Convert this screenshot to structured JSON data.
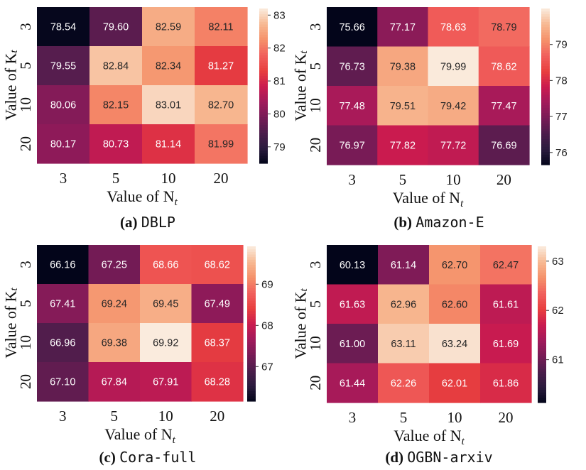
{
  "colorscale": [
    "#03051a",
    "#2b1b3e",
    "#4c1d4b",
    "#771b56",
    "#a11a5b",
    "#cb1b4f",
    "#e83f3f",
    "#f1605d",
    "#f5916a",
    "#f7b891",
    "#faebdd"
  ],
  "chart_data": [
    {
      "type": "heatmap",
      "caption_label": "(a)",
      "caption_name": "DBLP",
      "xlabel": "Value of N",
      "xlabel_sub": "t",
      "ylabel": "Value of K",
      "ylabel_sub": "t",
      "x_categories": [
        "3",
        "5",
        "10",
        "20"
      ],
      "y_categories": [
        "3",
        "5",
        "10",
        "20"
      ],
      "values": [
        [
          "78.54",
          "79.60",
          "82.59",
          "82.11"
        ],
        [
          "79.55",
          "82.84",
          "82.34",
          "81.27"
        ],
        [
          "80.06",
          "82.15",
          "83.01",
          "82.70"
        ],
        [
          "80.17",
          "80.73",
          "81.14",
          "81.99"
        ]
      ],
      "colorbar_range": [
        78.5,
        83.2
      ],
      "colorbar_ticks": [
        "79",
        "80",
        "81",
        "82",
        "83"
      ]
    },
    {
      "type": "heatmap",
      "caption_label": "(b)",
      "caption_name": "Amazon-E",
      "xlabel": "Value of N",
      "xlabel_sub": "t",
      "ylabel": "Value of K",
      "ylabel_sub": "t",
      "x_categories": [
        "3",
        "5",
        "10",
        "20"
      ],
      "y_categories": [
        "3",
        "5",
        "10",
        "20"
      ],
      "values": [
        [
          "75.66",
          "77.17",
          "78.63",
          "78.79"
        ],
        [
          "76.73",
          "79.38",
          "79.99",
          "78.62"
        ],
        [
          "77.48",
          "79.51",
          "79.42",
          "77.47"
        ],
        [
          "76.97",
          "77.82",
          "77.72",
          "76.69"
        ]
      ],
      "colorbar_range": [
        75.66,
        80.0
      ],
      "colorbar_ticks": [
        "76",
        "77",
        "78",
        "79"
      ]
    },
    {
      "type": "heatmap",
      "caption_label": "(c)",
      "caption_name": "Cora-full",
      "xlabel": "Value of N",
      "xlabel_sub": "t",
      "ylabel": "Value of K",
      "ylabel_sub": "t",
      "x_categories": [
        "3",
        "5",
        "10",
        "20"
      ],
      "y_categories": [
        "3",
        "5",
        "10",
        "20"
      ],
      "values": [
        [
          "66.16",
          "67.25",
          "68.66",
          "68.62"
        ],
        [
          "67.41",
          "69.24",
          "69.45",
          "67.49"
        ],
        [
          "66.96",
          "69.38",
          "69.92",
          "68.37"
        ],
        [
          "67.10",
          "67.84",
          "67.91",
          "68.28"
        ]
      ],
      "colorbar_range": [
        66.16,
        69.92
      ],
      "colorbar_ticks": [
        "67",
        "68",
        "69"
      ]
    },
    {
      "type": "heatmap",
      "caption_label": "(d)",
      "caption_name": "OGBN-arxiv",
      "xlabel": "Value of N",
      "xlabel_sub": "t",
      "ylabel": "Value of K",
      "ylabel_sub": "t",
      "x_categories": [
        "3",
        "5",
        "10",
        "20"
      ],
      "y_categories": [
        "3",
        "5",
        "10",
        "20"
      ],
      "values": [
        [
          "60.13",
          "61.14",
          "62.70",
          "62.47"
        ],
        [
          "61.63",
          "62.96",
          "62.60",
          "61.61"
        ],
        [
          "61.00",
          "63.11",
          "63.24",
          "61.69"
        ],
        [
          "61.44",
          "62.26",
          "62.01",
          "61.86"
        ]
      ],
      "colorbar_range": [
        60.13,
        63.3
      ],
      "colorbar_ticks": [
        "61",
        "62",
        "63"
      ]
    }
  ]
}
